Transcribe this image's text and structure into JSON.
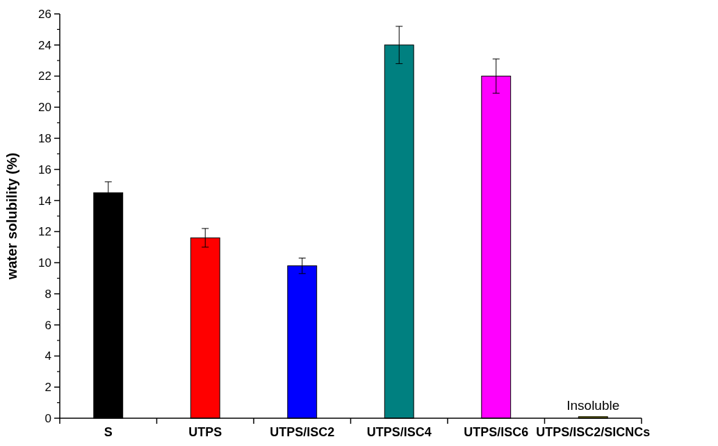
{
  "chart_data": {
    "type": "bar",
    "ylabel": "water solubility (%)",
    "categories": [
      "S",
      "UTPS",
      "UTPS/ISC2",
      "UTPS/ISC4",
      "UTPS/ISC6",
      "UTPS/ISC2/SICNCs"
    ],
    "values": [
      14.5,
      11.6,
      9.8,
      24.0,
      22.0,
      0.1
    ],
    "errors": [
      0.7,
      0.6,
      0.5,
      1.2,
      1.1,
      null
    ],
    "colors": [
      "#000000",
      "#ff0000",
      "#0000ff",
      "#008080",
      "#ff00ff",
      "#808000"
    ],
    "ylim": [
      0,
      26
    ],
    "yticks": [
      0,
      2,
      4,
      6,
      8,
      10,
      12,
      14,
      16,
      18,
      20,
      22,
      24,
      26
    ],
    "annotations": [
      {
        "text": "Insoluble",
        "x": "UTPS/ISC2/SICNCs",
        "y": 0.1
      }
    ],
    "grid": false
  }
}
